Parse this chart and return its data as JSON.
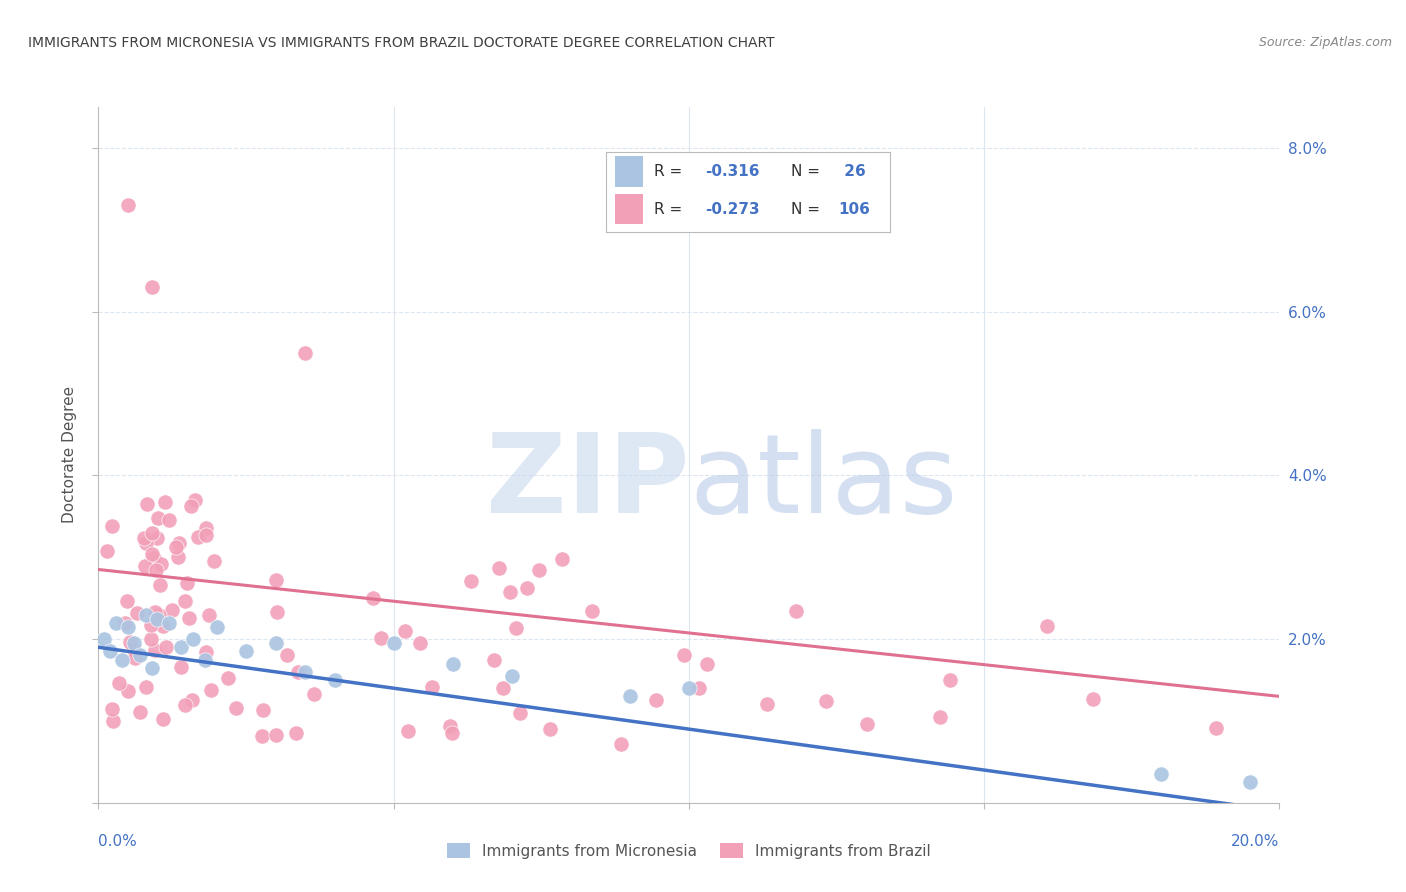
{
  "title": "IMMIGRANTS FROM MICRONESIA VS IMMIGRANTS FROM BRAZIL DOCTORATE DEGREE CORRELATION CHART",
  "source": "Source: ZipAtlas.com",
  "ylabel": "Doctorate Degree",
  "xlim": [
    0.0,
    0.2
  ],
  "ylim": [
    0.0,
    0.085
  ],
  "color_micronesia": "#aac4e2",
  "color_brazil": "#f2a0b8",
  "color_line_micronesia": "#4472c4",
  "color_line_brazil": "#e07090",
  "color_axis_labels": "#4472c4",
  "color_title": "#404040",
  "color_source": "#888888",
  "color_grid": "#dce6f0",
  "mic_trend_x0": 0.0,
  "mic_trend_y0": 0.019,
  "mic_trend_x1": 0.2,
  "mic_trend_y1": -0.001,
  "bra_trend_x0": 0.0,
  "bra_trend_y0": 0.0285,
  "bra_trend_x1": 0.2,
  "bra_trend_y1": 0.013,
  "legend_r1": "R = -0.316",
  "legend_n1": "N =  26",
  "legend_r2": "R = -0.273",
  "legend_n2": "N = 106"
}
